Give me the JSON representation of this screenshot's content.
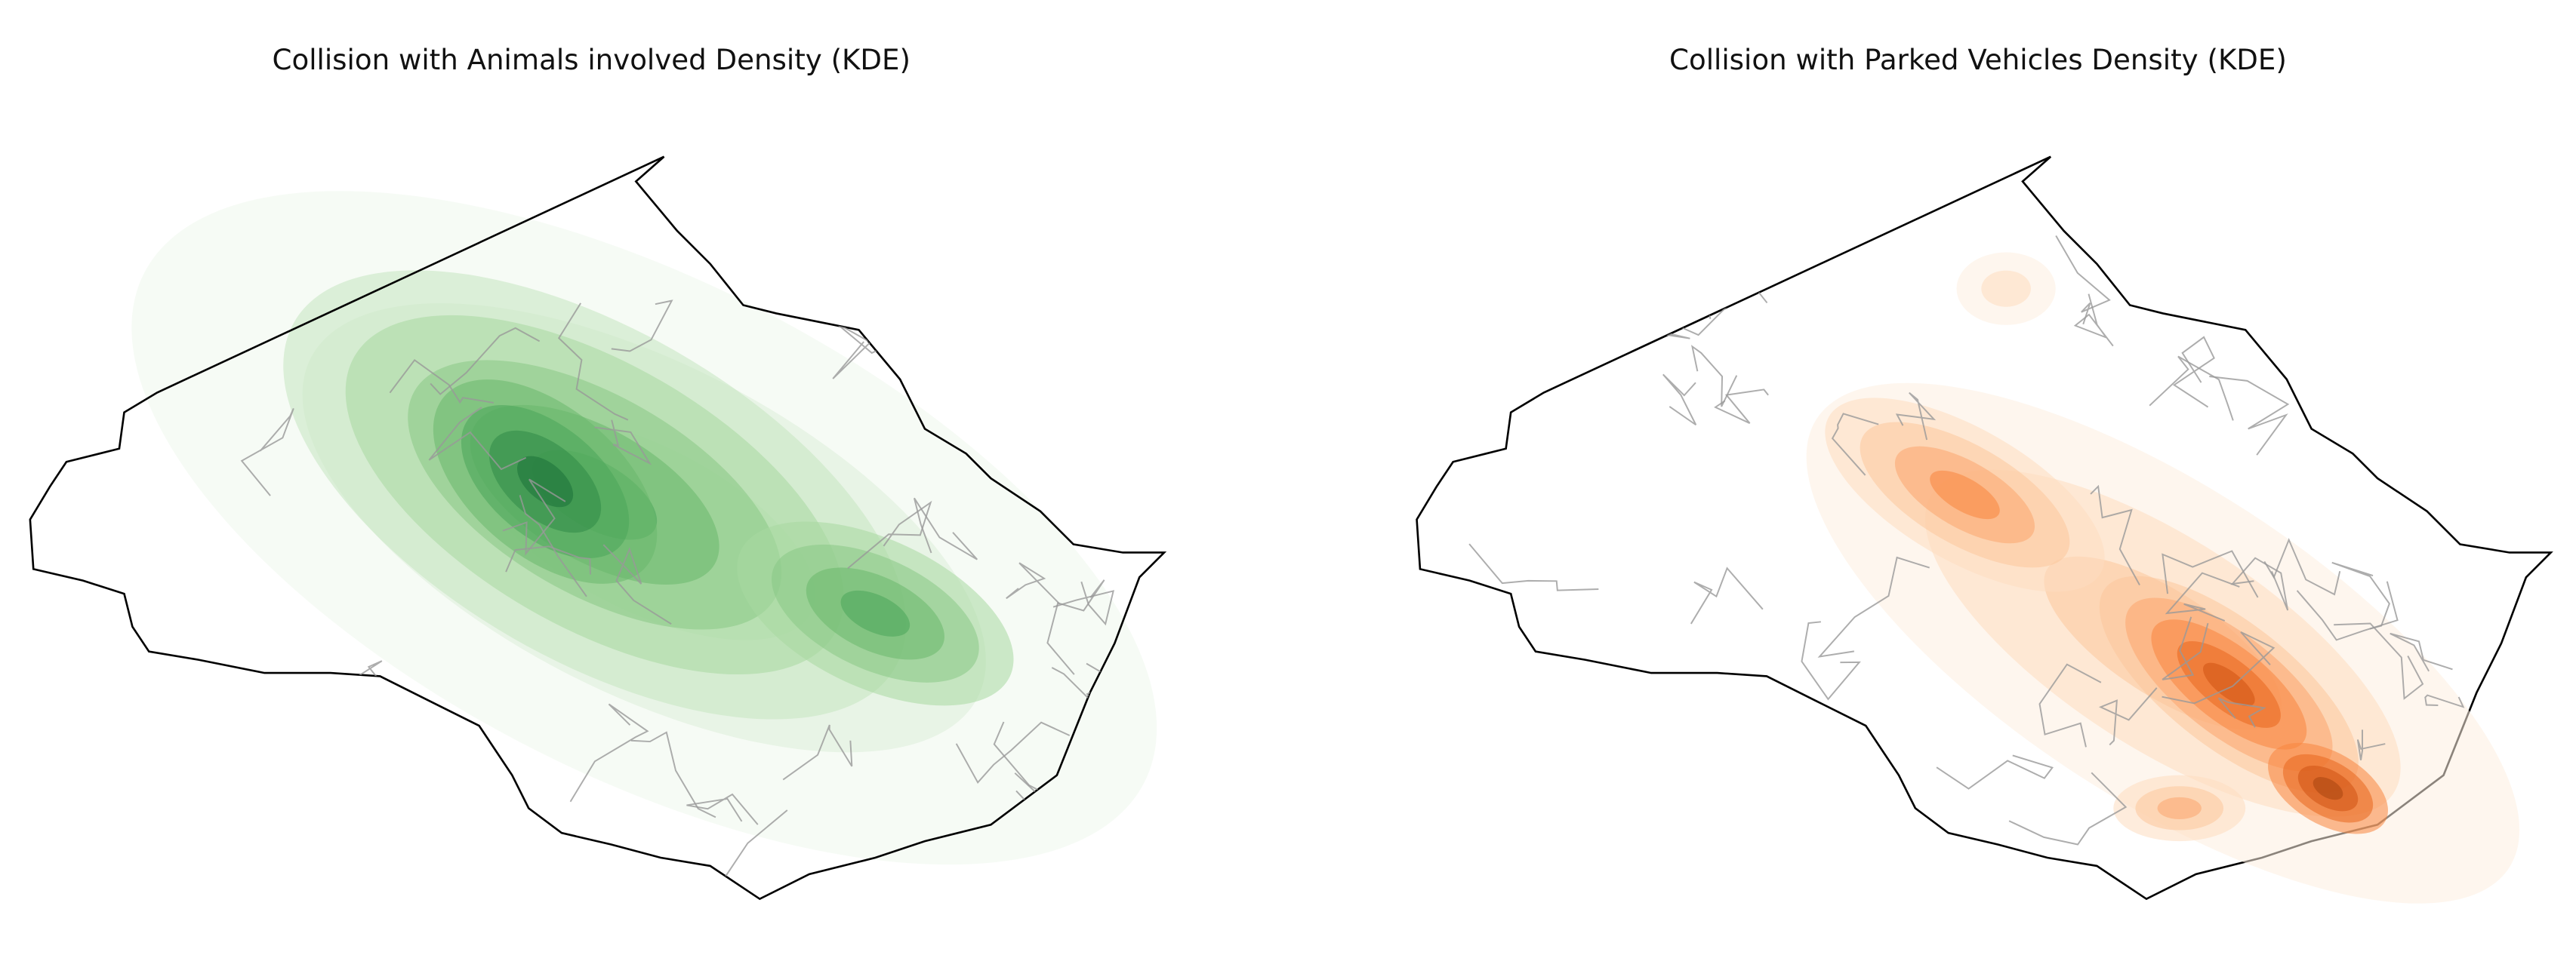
{
  "maps": [
    {
      "title": "Collision with Animals involved Density (KDE)"
    },
    {
      "title": "Collision with Parked Vehicles Density (KDE)"
    }
  ]
}
